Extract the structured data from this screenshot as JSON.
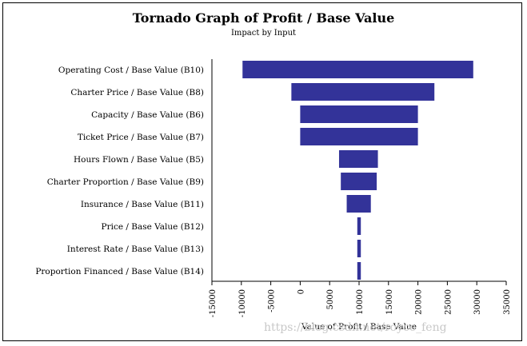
{
  "chart_data": {
    "type": "bar",
    "orientation": "horizontal",
    "title": "Tornado Graph of Profit / Base Value",
    "subtitle": "Impact by Input",
    "xlabel": "Value of Profit / Base Value",
    "xlim": [
      -15000,
      35000
    ],
    "xticks": [
      -15000,
      -10000,
      -5000,
      0,
      5000,
      10000,
      15000,
      20000,
      25000,
      30000,
      35000
    ],
    "base_value": 10000,
    "bar_color": "#333399",
    "categories": [
      "Operating Cost / Base Value (B10)",
      "Charter Price / Base Value (B8)",
      "Capacity / Base Value (B6)",
      "Ticket Price / Base Value (B7)",
      "Hours Flown / Base Value (B5)",
      "Charter Proportion / Base Value (B9)",
      "Insurance / Base Value (B11)",
      "Price / Base Value (B12)",
      "Interest Rate / Base Value (B13)",
      "Proportion Financed / Base Value (B14)"
    ],
    "low": [
      -9800,
      -1500,
      0,
      0,
      6600,
      6900,
      7900,
      9700,
      9700,
      9700
    ],
    "high": [
      29400,
      22800,
      20000,
      20000,
      13200,
      13000,
      12000,
      10300,
      10300,
      10300
    ]
  },
  "watermark": "https://blog.csdn.net/royce_feng"
}
